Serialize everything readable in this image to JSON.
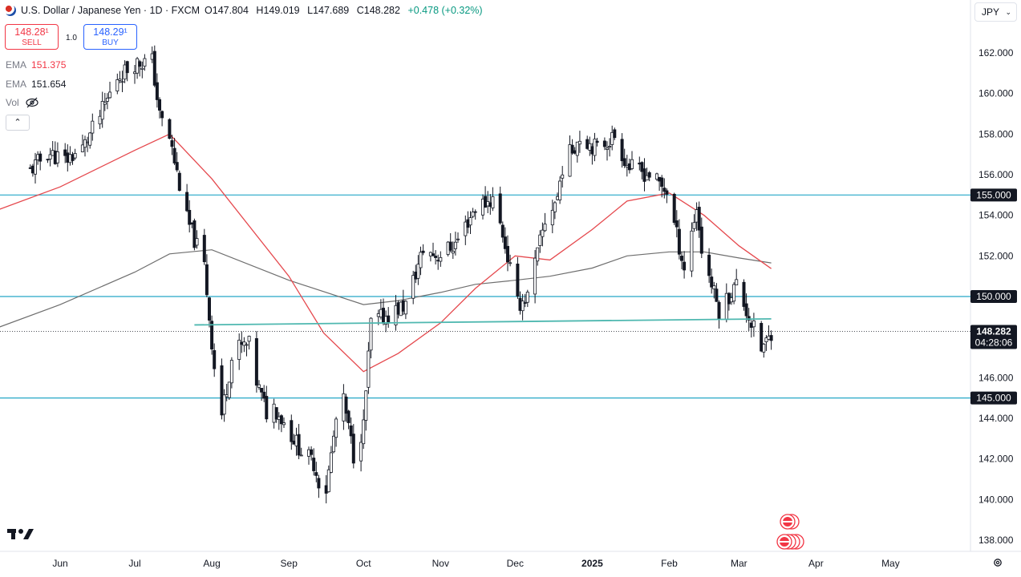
{
  "header": {
    "symbol": "U.S. Dollar / Japanese Yen · 1D · FXCM",
    "o_label": "O",
    "o_value": "147.804",
    "h_label": "H",
    "h_value": "149.019",
    "l_label": "L",
    "l_value": "147.689",
    "c_label": "C",
    "c_value": "148.282",
    "change": "+0.478 (+0.32%)"
  },
  "trade": {
    "sell_price": "148.28¹",
    "sell_label": "SELL",
    "spread": "1.0",
    "buy_price": "148.29¹",
    "buy_label": "BUY"
  },
  "indicators": {
    "ema1_label": "EMA",
    "ema1_value": "151.375",
    "ema2_label": "EMA",
    "ema2_value": "151.654",
    "vol_label": "Vol",
    "collapse_glyph": "⌃"
  },
  "currency_selector": {
    "value": "JPY",
    "chevron": "⌄"
  },
  "colors": {
    "up": "#ffffff",
    "down": "#131722",
    "ema_fast": "#e5484d",
    "ema_slow": "#6e6e6e",
    "hline": "#26a7c7",
    "trend": "#4fb8b0",
    "price_tag": "#131722"
  },
  "chart_data": {
    "type": "candlestick",
    "title": "U.S. Dollar / Japanese Yen · 1D · FXCM",
    "xlabel": "",
    "ylabel": "",
    "ylim": [
      137.5,
      163.5
    ],
    "y_ticks": [
      "138.000",
      "140.000",
      "142.000",
      "144.000",
      "146.000",
      "148.000",
      "150.000",
      "152.000",
      "154.000",
      "156.000",
      "158.000",
      "160.000",
      "162.000"
    ],
    "x_ticks": [
      "Jun",
      "Jul",
      "Aug",
      "Sep",
      "Oct",
      "Nov",
      "Dec",
      "2025",
      "Feb",
      "Mar",
      "Apr",
      "May"
    ],
    "x_tick_dates": [
      "2024-06-01",
      "2024-07-01",
      "2024-08-01",
      "2024-09-01",
      "2024-10-01",
      "2024-11-01",
      "2024-12-01",
      "2025-01-01",
      "2025-02-01",
      "2025-03-01",
      "2025-04-01",
      "2025-05-01"
    ],
    "close_path": [
      [
        "2024-05-20",
        156.2
      ],
      [
        "2024-05-27",
        157.1
      ],
      [
        "2024-06-03",
        156.7
      ],
      [
        "2024-06-10",
        157.3
      ],
      [
        "2024-06-17",
        158.9
      ],
      [
        "2024-06-24",
        160.8
      ],
      [
        "2024-07-01",
        161.5
      ],
      [
        "2024-07-08",
        161.6
      ],
      [
        "2024-07-11",
        158.9
      ],
      [
        "2024-07-15",
        157.8
      ],
      [
        "2024-07-22",
        153.8
      ],
      [
        "2024-07-29",
        151.5
      ],
      [
        "2024-08-02",
        146.5
      ],
      [
        "2024-08-05",
        144.2
      ],
      [
        "2024-08-09",
        146.9
      ],
      [
        "2024-08-12",
        147.5
      ],
      [
        "2024-08-16",
        147.6
      ],
      [
        "2024-08-19",
        145.8
      ],
      [
        "2024-08-23",
        144.3
      ],
      [
        "2024-08-26",
        144.6
      ],
      [
        "2024-09-02",
        143.2
      ],
      [
        "2024-09-06",
        142.4
      ],
      [
        "2024-09-11",
        141.8
      ],
      [
        "2024-09-13",
        140.9
      ],
      [
        "2024-09-16",
        140.5
      ],
      [
        "2024-09-20",
        143.9
      ],
      [
        "2024-09-23",
        144.8
      ],
      [
        "2024-09-27",
        142.2
      ],
      [
        "2024-10-01",
        143.6
      ],
      [
        "2024-10-04",
        148.7
      ],
      [
        "2024-10-11",
        149.1
      ],
      [
        "2024-10-18",
        149.6
      ],
      [
        "2024-10-25",
        152.3
      ],
      [
        "2024-10-31",
        152.0
      ],
      [
        "2024-11-07",
        152.6
      ],
      [
        "2024-11-15",
        154.4
      ],
      [
        "2024-11-22",
        154.8
      ],
      [
        "2024-11-26",
        153.1
      ],
      [
        "2024-12-02",
        149.6
      ],
      [
        "2024-12-06",
        150.0
      ],
      [
        "2024-12-13",
        153.7
      ],
      [
        "2024-12-18",
        154.9
      ],
      [
        "2024-12-20",
        156.4
      ],
      [
        "2024-12-27",
        157.9
      ],
      [
        "2025-01-03",
        157.3
      ],
      [
        "2025-01-10",
        157.9
      ],
      [
        "2025-01-15",
        156.5
      ],
      [
        "2025-01-17",
        156.3
      ],
      [
        "2025-01-24",
        156.0
      ],
      [
        "2025-01-31",
        155.2
      ],
      [
        "2025-02-07",
        151.4
      ],
      [
        "2025-02-12",
        154.4
      ],
      [
        "2025-02-14",
        152.3
      ],
      [
        "2025-02-21",
        149.3
      ],
      [
        "2025-02-28",
        150.6
      ],
      [
        "2025-03-05",
        149.0
      ],
      [
        "2025-03-10",
        147.4
      ],
      [
        "2025-03-13",
        147.9
      ],
      [
        "2025-03-14",
        148.282
      ]
    ],
    "ema_fast": [
      [
        "2024-05-01",
        154.0
      ],
      [
        "2024-06-01",
        155.4
      ],
      [
        "2024-07-01",
        157.2
      ],
      [
        "2024-07-15",
        158.0
      ],
      [
        "2024-08-01",
        155.8
      ],
      [
        "2024-09-01",
        151.0
      ],
      [
        "2024-09-15",
        148.2
      ],
      [
        "2024-10-01",
        146.3
      ],
      [
        "2024-10-15",
        147.2
      ],
      [
        "2024-11-01",
        148.7
      ],
      [
        "2024-11-15",
        150.4
      ],
      [
        "2024-12-01",
        152.0
      ],
      [
        "2024-12-15",
        151.8
      ],
      [
        "2025-01-01",
        153.3
      ],
      [
        "2025-01-15",
        154.7
      ],
      [
        "2025-02-01",
        155.1
      ],
      [
        "2025-02-15",
        154.0
      ],
      [
        "2025-03-01",
        152.5
      ],
      [
        "2025-03-14",
        151.375
      ]
    ],
    "ema_slow": [
      [
        "2024-05-01",
        148.2
      ],
      [
        "2024-06-01",
        149.6
      ],
      [
        "2024-07-01",
        151.2
      ],
      [
        "2024-07-15",
        152.1
      ],
      [
        "2024-08-01",
        152.3
      ],
      [
        "2024-09-01",
        150.8
      ],
      [
        "2024-10-01",
        149.6
      ],
      [
        "2024-10-15",
        149.8
      ],
      [
        "2024-11-01",
        150.2
      ],
      [
        "2024-11-15",
        150.6
      ],
      [
        "2024-12-01",
        150.8
      ],
      [
        "2024-12-15",
        151.0
      ],
      [
        "2025-01-01",
        151.4
      ],
      [
        "2025-01-15",
        152.0
      ],
      [
        "2025-02-01",
        152.2
      ],
      [
        "2025-02-15",
        152.2
      ],
      [
        "2025-03-01",
        151.9
      ],
      [
        "2025-03-14",
        151.654
      ]
    ],
    "horizontal_levels": [
      {
        "price": 155.0,
        "label": "155.000"
      },
      {
        "price": 150.0,
        "label": "150.000"
      },
      {
        "price": 145.0,
        "label": "145.000"
      }
    ],
    "trendline": [
      [
        "2024-07-25",
        148.6
      ],
      [
        "2025-03-14",
        148.9
      ]
    ],
    "last_price": {
      "label": "148.282",
      "countdown": "04:28:06",
      "value": 148.282
    }
  }
}
